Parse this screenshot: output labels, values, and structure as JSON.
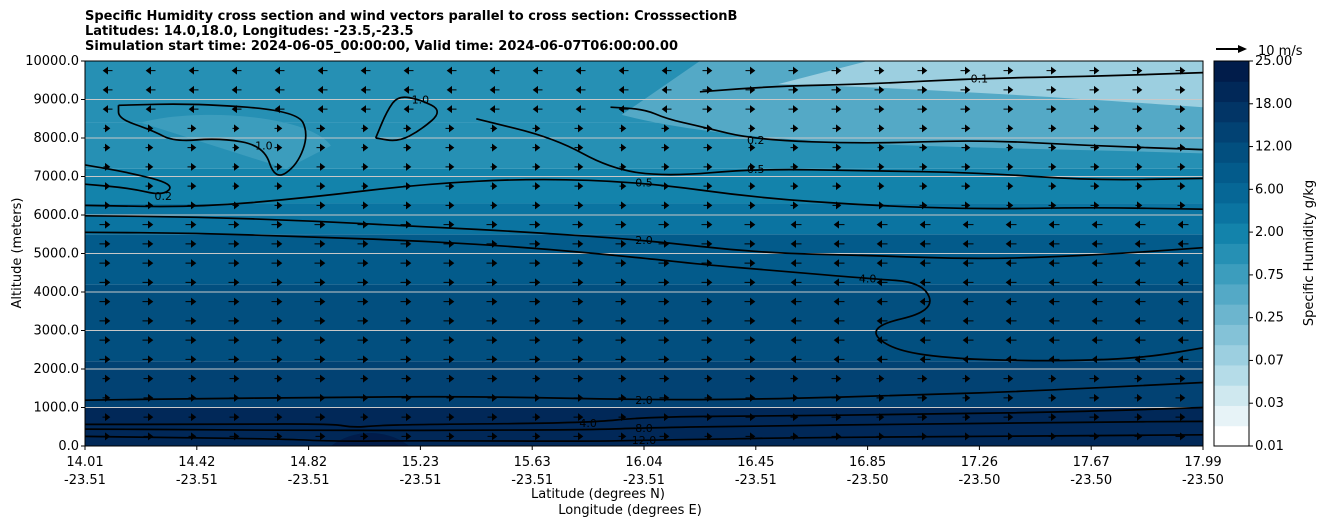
{
  "chart_data": {
    "type": "heatmap",
    "title_lines": [
      "Specific Humidity cross section and wind vectors parallel to cross section: CrosssectionB",
      "Latitudes: 14.0,18.0, Longitudes: -23.5,-23.5",
      "Simulation start time: 2024-06-05_00:00:00, Valid time: 2024-06-07T06:00:00.00"
    ],
    "xlabel": "Latitude (degrees N)",
    "xlabel2": "Longitude (degrees E)",
    "ylabel": "Altitude (meters)",
    "ylim": [
      0,
      10000
    ],
    "grid": "horizontal",
    "y_ticks": [
      {
        "value": 0,
        "label": "0.0"
      },
      {
        "value": 1000,
        "label": "1000.0"
      },
      {
        "value": 2000,
        "label": "2000.0"
      },
      {
        "value": 3000,
        "label": "3000.0"
      },
      {
        "value": 4000,
        "label": "4000.0"
      },
      {
        "value": 5000,
        "label": "5000.0"
      },
      {
        "value": 6000,
        "label": "6000.0"
      },
      {
        "value": 7000,
        "label": "7000.0"
      },
      {
        "value": 8000,
        "label": "8000.0"
      },
      {
        "value": 9000,
        "label": "9000.0"
      },
      {
        "value": 10000,
        "label": "10000.0"
      }
    ],
    "x_ticks": [
      {
        "lat": "14.01",
        "lon": "-23.51",
        "frac": 0.0
      },
      {
        "lat": "14.42",
        "lon": "-23.51",
        "frac": 0.1
      },
      {
        "lat": "14.82",
        "lon": "-23.51",
        "frac": 0.2
      },
      {
        "lat": "15.23",
        "lon": "-23.51",
        "frac": 0.3
      },
      {
        "lat": "15.63",
        "lon": "-23.51",
        "frac": 0.4
      },
      {
        "lat": "16.04",
        "lon": "-23.51",
        "frac": 0.5
      },
      {
        "lat": "16.45",
        "lon": "-23.51",
        "frac": 0.6
      },
      {
        "lat": "16.85",
        "lon": "-23.50",
        "frac": 0.7
      },
      {
        "lat": "17.26",
        "lon": "-23.50",
        "frac": 0.8
      },
      {
        "lat": "17.67",
        "lon": "-23.50",
        "frac": 0.9
      },
      {
        "lat": "17.99",
        "lon": "-23.50",
        "frac": 1.0
      }
    ],
    "colorbar": {
      "label": "Specific Humidity g/kg",
      "levels": [
        "0.01",
        "0.03",
        "0.07",
        "0.25",
        "0.75",
        "2.00",
        "6.00",
        "12.00",
        "18.00",
        "25.00"
      ],
      "colors": [
        "#ffffff",
        "#e7f3f7",
        "#cfe8ef",
        "#b5dce8",
        "#9ccfe0",
        "#84c2d7",
        "#6cb5ce",
        "#54a9c6",
        "#3c9dbd",
        "#2690b4",
        "#1383ab",
        "#0b74a1",
        "#066796",
        "#035b8b",
        "#024f7f",
        "#024273",
        "#023566",
        "#012858",
        "#011c4a"
      ]
    },
    "wind_reference": {
      "label": "10 m/s",
      "speed": 10
    },
    "contours": [
      {
        "level": 12.0,
        "label": "12.0",
        "points": [
          [
            0,
            250
          ],
          [
            0.08,
            220
          ],
          [
            0.18,
            180
          ],
          [
            0.22,
            120
          ],
          [
            0.3,
            140
          ],
          [
            0.45,
            120
          ],
          [
            0.5,
            150
          ],
          [
            0.55,
            170
          ],
          [
            0.62,
            210
          ],
          [
            0.75,
            240
          ],
          [
            0.9,
            270
          ],
          [
            1,
            290
          ]
        ]
      },
      {
        "level": 8.0,
        "label": "8.0",
        "points": [
          [
            0,
            440
          ],
          [
            0.1,
            420
          ],
          [
            0.25,
            400
          ],
          [
            0.35,
            410
          ],
          [
            0.45,
            420
          ],
          [
            0.5,
            470
          ],
          [
            0.6,
            520
          ],
          [
            0.75,
            570
          ],
          [
            0.9,
            620
          ],
          [
            1,
            640
          ]
        ]
      },
      {
        "level": 4.0,
        "label": "4.0",
        "points": [
          [
            0,
            560
          ],
          [
            0.1,
            560
          ],
          [
            0.22,
            580
          ],
          [
            0.24,
            480
          ],
          [
            0.26,
            530
          ],
          [
            0.3,
            560
          ],
          [
            0.45,
            600
          ],
          [
            0.5,
            750
          ],
          [
            0.6,
            780
          ],
          [
            0.75,
            820
          ],
          [
            0.9,
            900
          ],
          [
            1,
            1000
          ]
        ]
      },
      {
        "level": 2.0,
        "label": "2.0",
        "points": [
          [
            0,
            1190
          ],
          [
            0.1,
            1230
          ],
          [
            0.2,
            1260
          ],
          [
            0.35,
            1290
          ],
          [
            0.5,
            1200
          ],
          [
            0.6,
            1210
          ],
          [
            0.75,
            1330
          ],
          [
            0.85,
            1430
          ],
          [
            1,
            1650
          ]
        ]
      },
      {
        "level": 4.0,
        "label": "4.0",
        "points": [
          [
            0,
            5550
          ],
          [
            0.1,
            5530
          ],
          [
            0.2,
            5430
          ],
          [
            0.3,
            5330
          ],
          [
            0.4,
            5150
          ],
          [
            0.5,
            4880
          ],
          [
            0.55,
            4720
          ],
          [
            0.62,
            4550
          ],
          [
            0.7,
            4350
          ],
          [
            0.75,
            4250
          ],
          [
            0.76,
            3500
          ],
          [
            0.7,
            3100
          ],
          [
            0.72,
            2500
          ],
          [
            0.78,
            2250
          ],
          [
            0.88,
            2200
          ],
          [
            0.95,
            2300
          ],
          [
            1,
            2550
          ]
        ]
      },
      {
        "level": 2.0,
        "label": "2.0",
        "points": [
          [
            0,
            5980
          ],
          [
            0.1,
            5950
          ],
          [
            0.2,
            5850
          ],
          [
            0.3,
            5700
          ],
          [
            0.4,
            5550
          ],
          [
            0.5,
            5350
          ],
          [
            0.6,
            5020
          ],
          [
            0.7,
            4950
          ],
          [
            0.8,
            4850
          ],
          [
            0.9,
            4950
          ],
          [
            1,
            5150
          ]
        ]
      },
      {
        "level": 0.5,
        "label": "0.5",
        "points": [
          [
            0,
            6250
          ],
          [
            0.1,
            6200
          ],
          [
            0.2,
            6450
          ],
          [
            0.3,
            6800
          ],
          [
            0.4,
            6950
          ],
          [
            0.5,
            6850
          ],
          [
            0.6,
            6450
          ],
          [
            0.7,
            6250
          ],
          [
            0.8,
            6150
          ],
          [
            0.9,
            6200
          ],
          [
            1,
            6150
          ]
        ]
      },
      {
        "level": 0.5,
        "label": "0.5",
        "points": [
          [
            0.35,
            8500
          ],
          [
            0.42,
            8000
          ],
          [
            0.47,
            7200
          ],
          [
            0.52,
            7000
          ],
          [
            0.6,
            7200
          ],
          [
            0.7,
            7150
          ],
          [
            0.8,
            7100
          ],
          [
            0.9,
            6900
          ],
          [
            1,
            6950
          ]
        ]
      },
      {
        "level": 0.2,
        "label": "0.2",
        "points": [
          [
            0.47,
            8800
          ],
          [
            0.5,
            8750
          ],
          [
            0.52,
            8500
          ],
          [
            0.55,
            8300
          ],
          [
            0.6,
            7950
          ],
          [
            0.7,
            7850
          ],
          [
            0.8,
            7950
          ],
          [
            0.9,
            7800
          ],
          [
            1,
            7700
          ]
        ]
      },
      {
        "level": 0.1,
        "label": "0.1",
        "points": [
          [
            0.55,
            9200
          ],
          [
            0.62,
            9350
          ],
          [
            0.7,
            9400
          ],
          [
            0.8,
            9550
          ],
          [
            0.9,
            9600
          ],
          [
            1,
            9700
          ]
        ]
      },
      {
        "level": 1.0,
        "label": "1.0",
        "points": [
          [
            0.03,
            8850
          ],
          [
            0.1,
            8900
          ],
          [
            0.19,
            8700
          ],
          [
            0.2,
            8100
          ],
          [
            0.19,
            7300
          ],
          [
            0.17,
            6900
          ],
          [
            0.16,
            7800
          ],
          [
            0.12,
            8000
          ],
          [
            0.08,
            7900
          ],
          [
            0.06,
            8200
          ],
          [
            0.03,
            8500
          ],
          [
            0.03,
            8850
          ]
        ]
      },
      {
        "level": 1.0,
        "label": "1.0",
        "points": [
          [
            0.26,
            8000
          ],
          [
            0.28,
            7900
          ],
          [
            0.3,
            8200
          ],
          [
            0.32,
            8700
          ],
          [
            0.3,
            9000
          ],
          [
            0.28,
            9100
          ],
          [
            0.27,
            8700
          ],
          [
            0.26,
            8000
          ]
        ]
      },
      {
        "level": 0.2,
        "label": "0.2",
        "points": [
          [
            0,
            7300
          ],
          [
            0.04,
            7100
          ],
          [
            0.08,
            6800
          ],
          [
            0.07,
            6500
          ],
          [
            0.04,
            6700
          ],
          [
            0,
            6800
          ]
        ]
      }
    ]
  }
}
